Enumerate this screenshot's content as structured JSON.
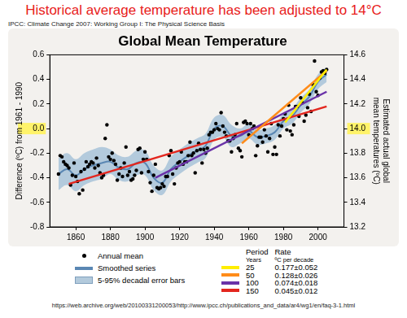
{
  "chart_data": {
    "type": "line",
    "heading": "Historical average temperature has been adjusted to 14°C",
    "source": "IPCC: Climate Change 2007: Working Group I: The Physical Science Basis",
    "url": "https://web.archive.org/web/20100331200053/http://www.ipcc.ch/publications_and_data/ar4/wg1/en/faq-3-1.html",
    "title": "Global Mean Temperature",
    "ylabel": "Difference (ºC) from 1961 - 1990",
    "y2label": [
      "Estimated actual global",
      "mean temperatures (ºC)"
    ],
    "xlim": [
      1845,
      2015
    ],
    "xticks": [
      1860,
      1880,
      1900,
      1920,
      1940,
      1960,
      1980,
      2000
    ],
    "ylim": [
      -0.8,
      0.6
    ],
    "yticks": [
      -0.8,
      -0.6,
      -0.4,
      -0.2,
      {
        "value": 0,
        "label": "0.0"
      },
      0.2,
      0.4,
      0.6
    ],
    "y2lim": [
      13.2,
      14.6
    ],
    "y2ticks": [
      13.2,
      13.4,
      13.6,
      13.8,
      {
        "value": 14,
        "label": "14.0"
      },
      14.2,
      14.4,
      14.6
    ],
    "grid": false,
    "legend": "bottom",
    "series": [
      {
        "name": "Annual mean",
        "type": "scatter",
        "marker": "circle",
        "color": "#000000",
        "x": [
          1850,
          1851,
          1852,
          1853,
          1854,
          1855,
          1856,
          1857,
          1858,
          1859,
          1860,
          1861,
          1862,
          1863,
          1864,
          1865,
          1866,
          1867,
          1868,
          1869,
          1870,
          1871,
          1872,
          1873,
          1874,
          1875,
          1876,
          1877,
          1878,
          1879,
          1880,
          1881,
          1882,
          1883,
          1884,
          1885,
          1886,
          1887,
          1888,
          1889,
          1890,
          1891,
          1892,
          1893,
          1894,
          1895,
          1896,
          1897,
          1898,
          1899,
          1900,
          1901,
          1902,
          1903,
          1904,
          1905,
          1906,
          1907,
          1908,
          1909,
          1910,
          1911,
          1912,
          1913,
          1914,
          1915,
          1916,
          1917,
          1918,
          1919,
          1920,
          1921,
          1922,
          1923,
          1924,
          1925,
          1926,
          1927,
          1928,
          1929,
          1930,
          1931,
          1932,
          1933,
          1934,
          1935,
          1936,
          1937,
          1938,
          1939,
          1940,
          1941,
          1942,
          1943,
          1944,
          1945,
          1946,
          1947,
          1948,
          1949,
          1950,
          1951,
          1952,
          1953,
          1954,
          1955,
          1956,
          1957,
          1958,
          1959,
          1960,
          1961,
          1962,
          1963,
          1964,
          1965,
          1966,
          1967,
          1968,
          1969,
          1970,
          1971,
          1972,
          1973,
          1974,
          1975,
          1976,
          1977,
          1978,
          1979,
          1980,
          1981,
          1982,
          1983,
          1984,
          1985,
          1986,
          1987,
          1988,
          1989,
          1990,
          1991,
          1992,
          1993,
          1994,
          1995,
          1996,
          1997,
          1998,
          1999,
          2000,
          2001,
          2002,
          2003,
          2004,
          2005
        ],
        "values": [
          -0.37,
          -0.22,
          -0.23,
          -0.27,
          -0.29,
          -0.3,
          -0.32,
          -0.46,
          -0.38,
          -0.28,
          -0.39,
          -0.43,
          -0.53,
          -0.35,
          -0.5,
          -0.33,
          -0.27,
          -0.31,
          -0.29,
          -0.27,
          -0.28,
          -0.32,
          -0.24,
          -0.3,
          -0.36,
          -0.4,
          -0.38,
          -0.08,
          0.03,
          -0.23,
          -0.25,
          -0.2,
          -0.26,
          -0.29,
          -0.42,
          -0.37,
          -0.32,
          -0.39,
          -0.28,
          -0.15,
          -0.38,
          -0.35,
          -0.42,
          -0.41,
          -0.38,
          -0.34,
          -0.17,
          -0.16,
          -0.36,
          -0.25,
          -0.19,
          -0.25,
          -0.35,
          -0.44,
          -0.51,
          -0.38,
          -0.29,
          -0.48,
          -0.49,
          -0.48,
          -0.45,
          -0.47,
          -0.39,
          -0.39,
          -0.22,
          -0.18,
          -0.37,
          -0.45,
          -0.32,
          -0.28,
          -0.27,
          -0.19,
          -0.29,
          -0.27,
          -0.27,
          -0.22,
          -0.11,
          -0.22,
          -0.2,
          -0.36,
          -0.18,
          -0.12,
          -0.17,
          -0.28,
          -0.17,
          -0.2,
          -0.16,
          -0.05,
          -0.03,
          -0.03,
          -0.01,
          0.04,
          0.0,
          -0.01,
          0.13,
          0.02,
          -0.03,
          -0.06,
          -0.1,
          -0.1,
          -0.19,
          -0.08,
          -0.05,
          0.04,
          -0.16,
          -0.18,
          -0.23,
          0.05,
          0.06,
          0.04,
          -0.05,
          0.04,
          0.0,
          0.02,
          -0.22,
          -0.14,
          -0.07,
          -0.07,
          -0.11,
          -0.01,
          -0.06,
          -0.19,
          -0.08,
          0.04,
          -0.21,
          -0.15,
          -0.21,
          0.03,
          -0.06,
          0.02,
          0.08,
          0.12,
          -0.01,
          0.19,
          -0.02,
          -0.05,
          0.03,
          0.18,
          0.18,
          0.1,
          0.25,
          0.21,
          0.06,
          0.11,
          0.17,
          0.28,
          0.14,
          0.36,
          0.55,
          0.3,
          0.27,
          0.41,
          0.46,
          0.47,
          0.45,
          0.48
        ]
      },
      {
        "name": "Smoothed series",
        "type": "line",
        "color": "#5a87b3",
        "x": [
          1850,
          1855,
          1860,
          1865,
          1870,
          1875,
          1880,
          1885,
          1890,
          1895,
          1900,
          1905,
          1910,
          1915,
          1920,
          1925,
          1930,
          1935,
          1940,
          1945,
          1950,
          1955,
          1960,
          1965,
          1970,
          1975,
          1980,
          1985,
          1990,
          1995,
          2000,
          2005
        ],
        "values": [
          -0.37,
          -0.33,
          -0.38,
          -0.33,
          -0.3,
          -0.28,
          -0.27,
          -0.32,
          -0.33,
          -0.28,
          -0.28,
          -0.4,
          -0.44,
          -0.33,
          -0.27,
          -0.22,
          -0.18,
          -0.14,
          0.0,
          0.02,
          -0.06,
          -0.06,
          -0.02,
          -0.07,
          -0.06,
          -0.03,
          0.06,
          0.1,
          0.19,
          0.26,
          0.38,
          0.44
        ]
      }
    ],
    "error_band": {
      "name": "5-95% decadal error bars",
      "color": "#b3cadc",
      "x": [
        1850,
        1855,
        1860,
        1865,
        1870,
        1875,
        1880,
        1885,
        1890,
        1895,
        1900,
        1905,
        1910,
        1915,
        1920,
        1925,
        1930,
        1935,
        1940,
        1945,
        1950,
        1955,
        1960,
        1965,
        1970,
        1975,
        1980,
        1985,
        1990,
        1995,
        2000,
        2005
      ],
      "lower": [
        -0.5,
        -0.46,
        -0.51,
        -0.46,
        -0.43,
        -0.41,
        -0.37,
        -0.42,
        -0.43,
        -0.38,
        -0.38,
        -0.5,
        -0.54,
        -0.43,
        -0.37,
        -0.32,
        -0.28,
        -0.24,
        -0.09,
        -0.07,
        -0.15,
        -0.12,
        -0.08,
        -0.13,
        -0.12,
        -0.09,
        0.0,
        0.04,
        0.13,
        0.2,
        0.32,
        0.38
      ],
      "upper": [
        -0.24,
        -0.2,
        -0.25,
        -0.2,
        -0.17,
        -0.15,
        -0.17,
        -0.22,
        -0.23,
        -0.18,
        -0.18,
        -0.3,
        -0.34,
        -0.23,
        -0.17,
        -0.12,
        -0.08,
        -0.04,
        0.09,
        0.11,
        0.03,
        0.0,
        0.04,
        -0.01,
        0.0,
        0.03,
        0.12,
        0.16,
        0.25,
        0.32,
        0.44,
        0.5
      ]
    },
    "trend_table_header": [
      "Period",
      "Rate"
    ],
    "trend_table_subheader": [
      "Years",
      "ºC per decade"
    ],
    "trends": [
      {
        "years": 25,
        "rate": "0.177±0.052",
        "color": "#ffee00",
        "x": [
          1981,
          2005
        ],
        "values": [
          0.05,
          0.48
        ]
      },
      {
        "years": 50,
        "rate": "0.128±0.026",
        "color": "#ff8c1a",
        "x": [
          1956,
          2005
        ],
        "values": [
          -0.12,
          0.47
        ]
      },
      {
        "years": 100,
        "rate": "0.074±0.018",
        "color": "#6a32a8",
        "x": [
          1906,
          2005
        ],
        "values": [
          -0.4,
          0.3
        ]
      },
      {
        "years": 150,
        "rate": "0.045±0.012",
        "color": "#e3261e",
        "x": [
          1856,
          2005
        ],
        "values": [
          -0.45,
          0.18
        ]
      }
    ]
  }
}
